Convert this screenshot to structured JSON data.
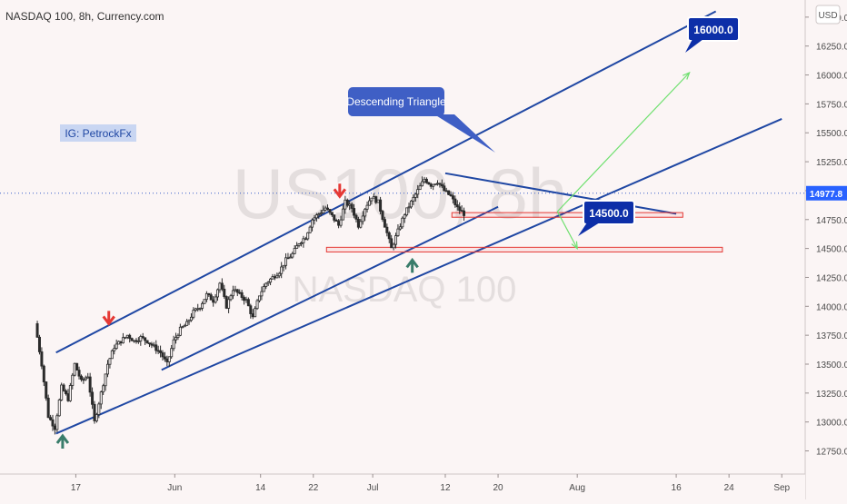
{
  "header": {
    "title": "NASDAQ 100, 8h, Currency.com"
  },
  "watermark": {
    "symbol": "US100, 8h",
    "name": "NASDAQ 100"
  },
  "currency_badge": "USD",
  "chart_data": {
    "type": "candlestick",
    "title": "NASDAQ 100, 8h, Currency.com",
    "ylim": [
      12550,
      16550
    ],
    "y_ticks": [
      12750,
      13000,
      13250,
      13500,
      13750,
      14000,
      14250,
      14500,
      14750,
      15000,
      15250,
      15500,
      15750,
      16000,
      16250,
      16500
    ],
    "y_tick_labels": [
      "12750.0",
      "13000.0",
      "13250.0",
      "13500.0",
      "13750.0",
      "14000.0",
      "14250.0",
      "14500.0",
      "14750.0",
      "15000.0",
      "15250.0",
      "15500.0",
      "15750.0",
      "16000.0",
      "16250.0",
      "16500.0"
    ],
    "x_ticks": [
      {
        "label": "17",
        "day": 17
      },
      {
        "label": "Jun",
        "day": 32
      },
      {
        "label": "14",
        "day": 45
      },
      {
        "label": "22",
        "day": 53
      },
      {
        "label": "Jul",
        "day": 62
      },
      {
        "label": "12",
        "day": 73
      },
      {
        "label": "20",
        "day": 81
      },
      {
        "label": "Aug",
        "day": 93
      },
      {
        "label": "16",
        "day": 108
      },
      {
        "label": "24",
        "day": 116
      },
      {
        "label": "Sep",
        "day": 124
      }
    ],
    "last_price": {
      "value": 14977.8,
      "label": "14977.8",
      "color": "#2962ff"
    },
    "series": {
      "up_color": "#2b2b2b",
      "down_color": "#2b2b2b"
    },
    "waypoints": [
      [
        11,
        13850
      ],
      [
        12,
        13500
      ],
      [
        13,
        13050
      ],
      [
        14,
        12950
      ],
      [
        15,
        13300
      ],
      [
        16,
        13200
      ],
      [
        17,
        13500
      ],
      [
        18,
        13350
      ],
      [
        19,
        13400
      ],
      [
        20,
        13000
      ],
      [
        21,
        13250
      ],
      [
        22,
        13500
      ],
      [
        23,
        13650
      ],
      [
        24,
        13700
      ],
      [
        25,
        13750
      ],
      [
        26,
        13700
      ],
      [
        27,
        13730
      ],
      [
        28,
        13700
      ],
      [
        29,
        13650
      ],
      [
        30,
        13600
      ],
      [
        31,
        13500
      ],
      [
        32,
        13700
      ],
      [
        33,
        13800
      ],
      [
        34,
        13850
      ],
      [
        35,
        13950
      ],
      [
        36,
        14000
      ],
      [
        37,
        14100
      ],
      [
        38,
        14050
      ],
      [
        39,
        14200
      ],
      [
        40,
        14000
      ],
      [
        41,
        14150
      ],
      [
        42,
        14100
      ],
      [
        43,
        14050
      ],
      [
        44,
        13900
      ],
      [
        45,
        14100
      ],
      [
        46,
        14200
      ],
      [
        47,
        14250
      ],
      [
        48,
        14300
      ],
      [
        49,
        14400
      ],
      [
        50,
        14450
      ],
      [
        51,
        14550
      ],
      [
        52,
        14600
      ],
      [
        53,
        14750
      ],
      [
        54,
        14800
      ],
      [
        55,
        14850
      ],
      [
        56,
        14780
      ],
      [
        57,
        14700
      ],
      [
        58,
        14900
      ],
      [
        59,
        14850
      ],
      [
        60,
        14700
      ],
      [
        61,
        14850
      ],
      [
        62,
        14950
      ],
      [
        63,
        14900
      ],
      [
        64,
        14700
      ],
      [
        65,
        14500
      ],
      [
        66,
        14650
      ],
      [
        67,
        14800
      ],
      [
        68,
        14900
      ],
      [
        69,
        15000
      ],
      [
        70,
        15100
      ],
      [
        71,
        15050
      ],
      [
        72,
        15080
      ],
      [
        73,
        15000
      ],
      [
        74,
        14950
      ],
      [
        75,
        14850
      ],
      [
        76,
        14800
      ]
    ],
    "annotations": [
      {
        "type": "text-badge",
        "text": "IG: PetrockFx"
      },
      {
        "type": "callout",
        "text": "Descending Triangle"
      },
      {
        "type": "target",
        "text": "16000.0",
        "value": 16000
      },
      {
        "type": "target",
        "text": "14500.0",
        "value": 14500
      }
    ],
    "support_zones": [
      {
        "from_day": 74,
        "to_day": 109,
        "low": 14770,
        "high": 14810
      },
      {
        "from_day": 55,
        "to_day": 115,
        "low": 14470,
        "high": 14510
      }
    ],
    "arrows": [
      {
        "direction": "down",
        "color": "#e53935",
        "day": 22,
        "value": 13850
      },
      {
        "direction": "down",
        "color": "#e53935",
        "day": 57,
        "value": 14950
      },
      {
        "direction": "up",
        "color": "#3a7d6b",
        "day": 15,
        "value": 12880
      },
      {
        "direction": "up",
        "color": "#3a7d6b",
        "day": 68,
        "value": 14400
      }
    ]
  }
}
